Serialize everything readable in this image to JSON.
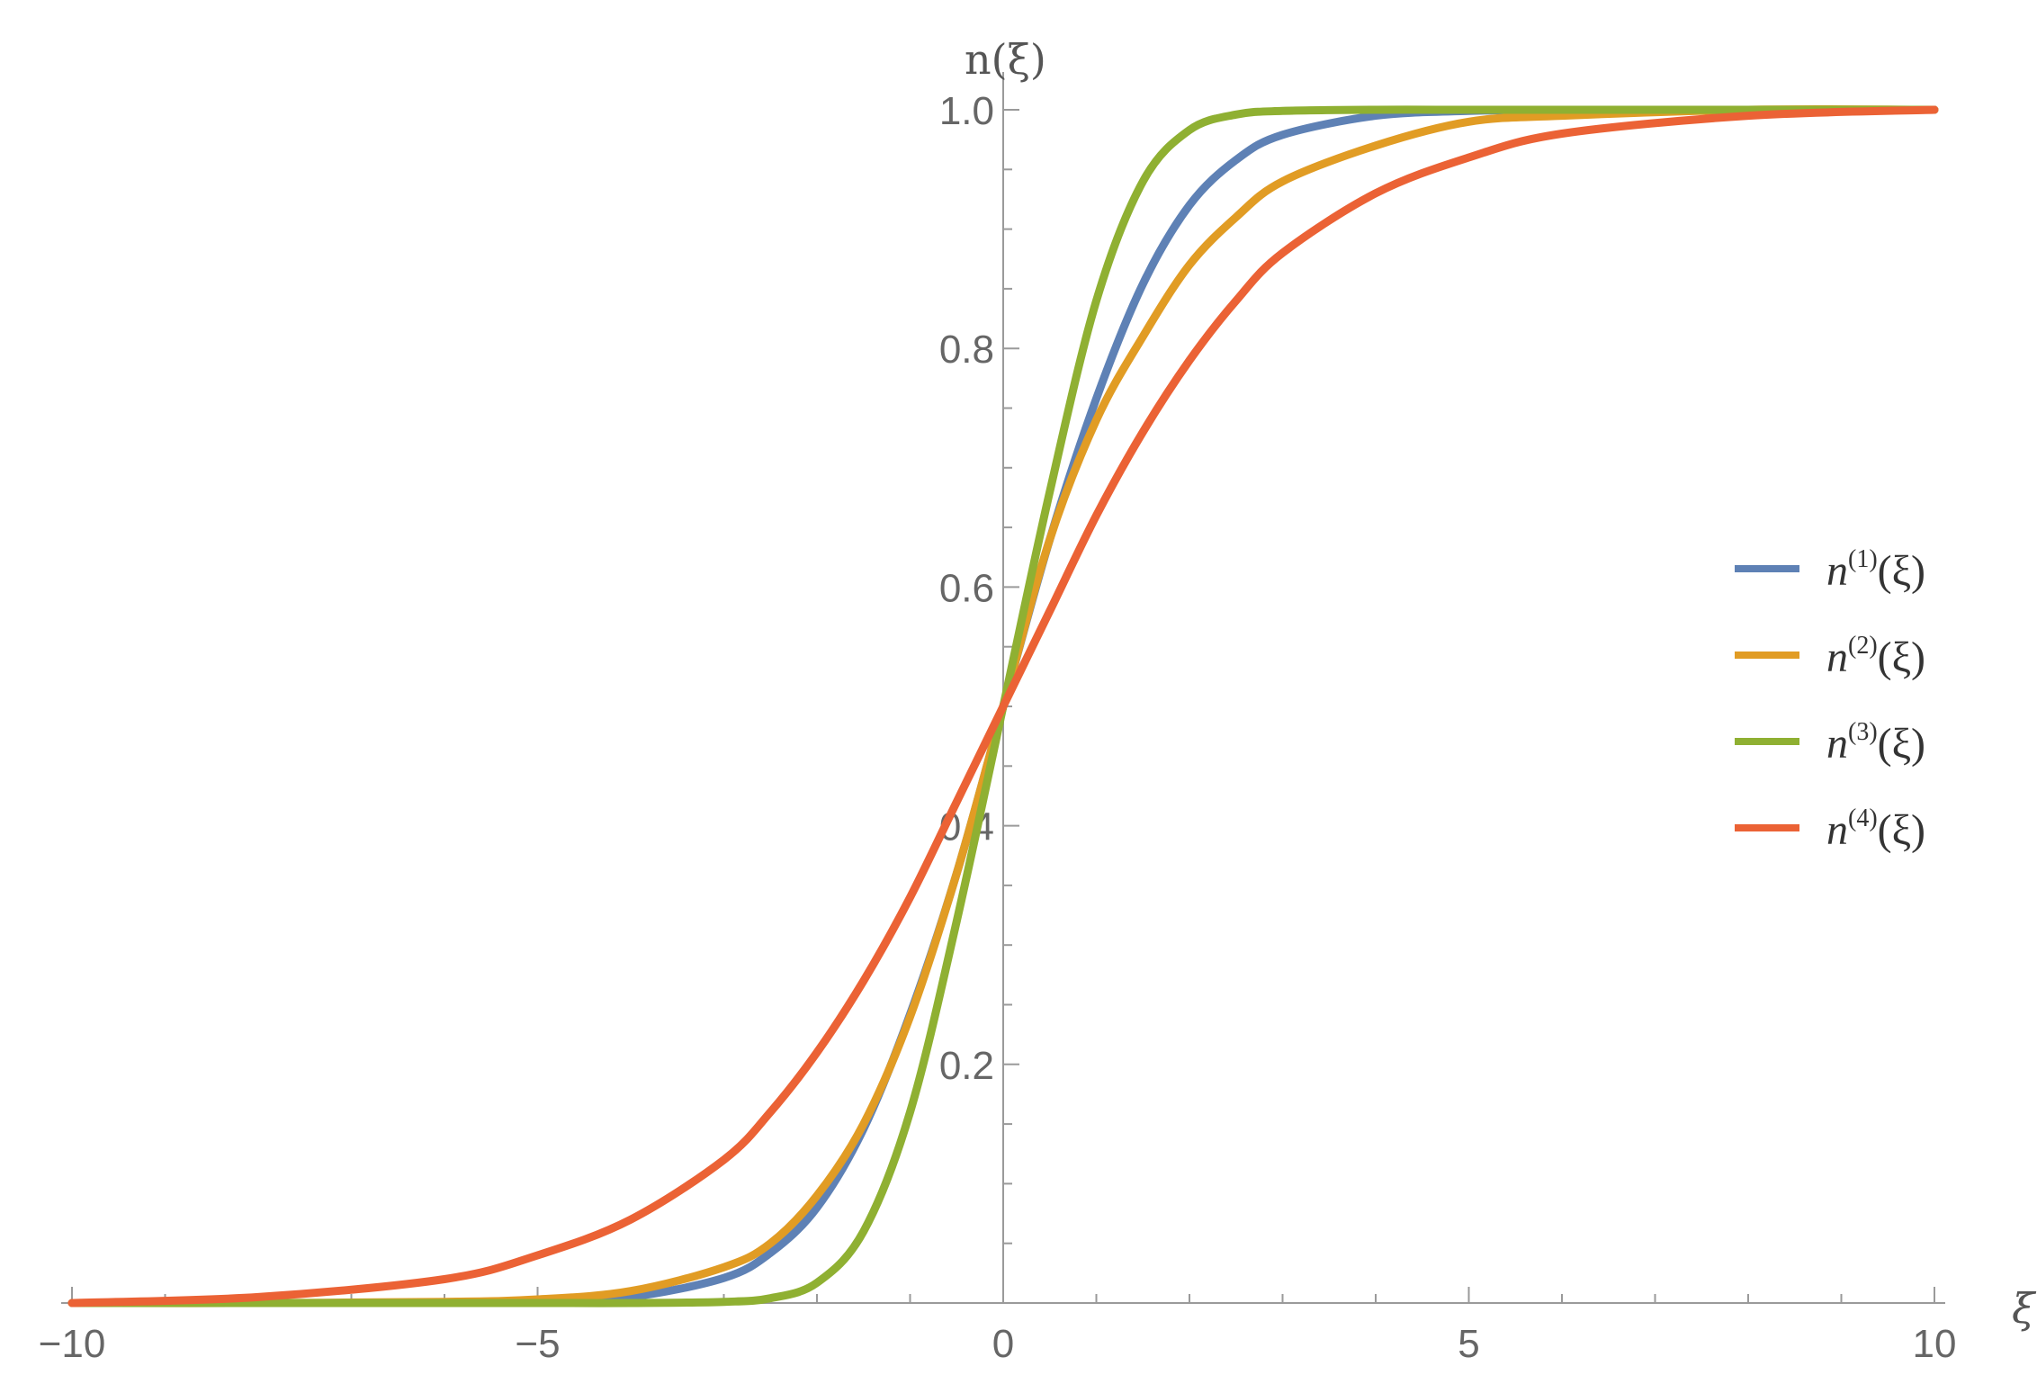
{
  "chart_data": {
    "type": "line",
    "title": "",
    "xlabel": "ξ",
    "ylabel": "n(ξ)",
    "xlim": [
      -10,
      10
    ],
    "ylim": [
      0,
      1
    ],
    "x_ticks": [
      {
        "value": -10,
        "label": "−10"
      },
      {
        "value": -5,
        "label": "−5"
      },
      {
        "value": 0,
        "label": "0"
      },
      {
        "value": 5,
        "label": "5"
      },
      {
        "value": 10,
        "label": "10"
      }
    ],
    "y_ticks": [
      {
        "value": 0.2,
        "label": "0.2"
      },
      {
        "value": 0.4,
        "label": "0.4"
      },
      {
        "value": 0.6,
        "label": "0.6"
      },
      {
        "value": 0.8,
        "label": "0.8"
      },
      {
        "value": 1.0,
        "label": "1.0"
      }
    ],
    "grid": false,
    "legend_position": "right",
    "x": [
      -10,
      -8,
      -6,
      -5,
      -4,
      -3,
      -2.5,
      -2,
      -1.5,
      -1,
      -0.5,
      0,
      0.5,
      1,
      1.5,
      2,
      2.5,
      3,
      4,
      5,
      6,
      8,
      10
    ],
    "series": [
      {
        "name_base": "n",
        "name_sup": "(1)",
        "name_arg": "(ξ)",
        "color": "#5e81b5",
        "values": [
          0,
          0,
          0,
          0.001,
          0.005,
          0.021,
          0.042,
          0.08,
          0.146,
          0.242,
          0.36,
          0.5,
          0.64,
          0.758,
          0.854,
          0.92,
          0.958,
          0.979,
          0.995,
          0.999,
          1,
          1,
          1
        ]
      },
      {
        "name_base": "n",
        "name_sup": "(2)",
        "name_arg": "(ξ)",
        "color": "#e19c24",
        "values": [
          0,
          0,
          0.001,
          0.003,
          0.01,
          0.03,
          0.05,
          0.09,
          0.15,
          0.24,
          0.36,
          0.5,
          0.64,
          0.74,
          0.81,
          0.87,
          0.91,
          0.94,
          0.97,
          0.99,
          0.995,
          1,
          1
        ]
      },
      {
        "name_base": "n",
        "name_sup": "(3)",
        "name_arg": "(ξ)",
        "color": "#8fb032",
        "values": [
          0,
          0,
          0,
          0,
          0,
          0.001,
          0.004,
          0.017,
          0.06,
          0.16,
          0.32,
          0.5,
          0.68,
          0.84,
          0.94,
          0.983,
          0.996,
          0.999,
          1,
          1,
          1,
          1,
          1
        ]
      },
      {
        "name_base": "n",
        "name_sup": "(4)",
        "name_arg": "(ξ)",
        "color": "#eb6235",
        "values": [
          0,
          0.005,
          0.02,
          0.04,
          0.07,
          0.12,
          0.16,
          0.21,
          0.27,
          0.34,
          0.42,
          0.5,
          0.58,
          0.66,
          0.73,
          0.79,
          0.84,
          0.88,
          0.93,
          0.96,
          0.98,
          0.995,
          1
        ]
      }
    ]
  }
}
